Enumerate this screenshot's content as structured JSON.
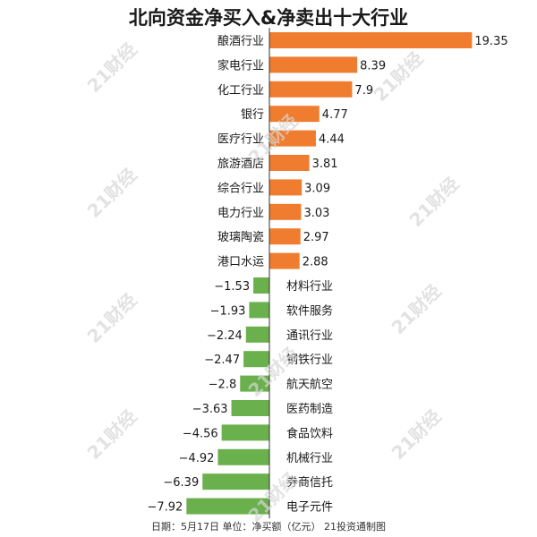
{
  "footer": "日期：5月17日 单位：净买额（亿元） 21投资通制图",
  "watermark": "21财经",
  "colors": {
    "positive": "#f07d2f",
    "negative": "#6ab04c",
    "axis": "#333333",
    "text": "#1a1a1a"
  },
  "chart_data": {
    "type": "bar",
    "orientation": "horizontal",
    "title": "北向资金净买入&净卖出十大行业",
    "xlabel": "",
    "ylabel": "",
    "grid": false,
    "xlim": [
      -8,
      20
    ],
    "categories": [
      "酿酒行业",
      "家电行业",
      "化工行业",
      "银行",
      "医疗行业",
      "旅游酒店",
      "综合行业",
      "电力行业",
      "玻璃陶瓷",
      "港口水运",
      "材料行业",
      "软件服务",
      "通讯行业",
      "钢铁行业",
      "航天航空",
      "医药制造",
      "食品饮料",
      "机械行业",
      "券商信托",
      "电子元件"
    ],
    "values": [
      19.35,
      8.39,
      7.9,
      4.77,
      4.44,
      3.81,
      3.09,
      3.03,
      2.97,
      2.88,
      -1.53,
      -1.93,
      -2.24,
      -2.47,
      -2.8,
      -3.63,
      -4.56,
      -4.92,
      -6.39,
      -7.92
    ],
    "value_labels": [
      "19.35",
      "8.39",
      "7.9",
      "4.77",
      "4.44",
      "3.81",
      "3.09",
      "3.03",
      "2.97",
      "2.88",
      "−1.53",
      "−1.93",
      "−2.24",
      "−2.47",
      "−2.8",
      "−3.63",
      "−4.56",
      "−4.92",
      "−6.39",
      "−7.92"
    ]
  }
}
